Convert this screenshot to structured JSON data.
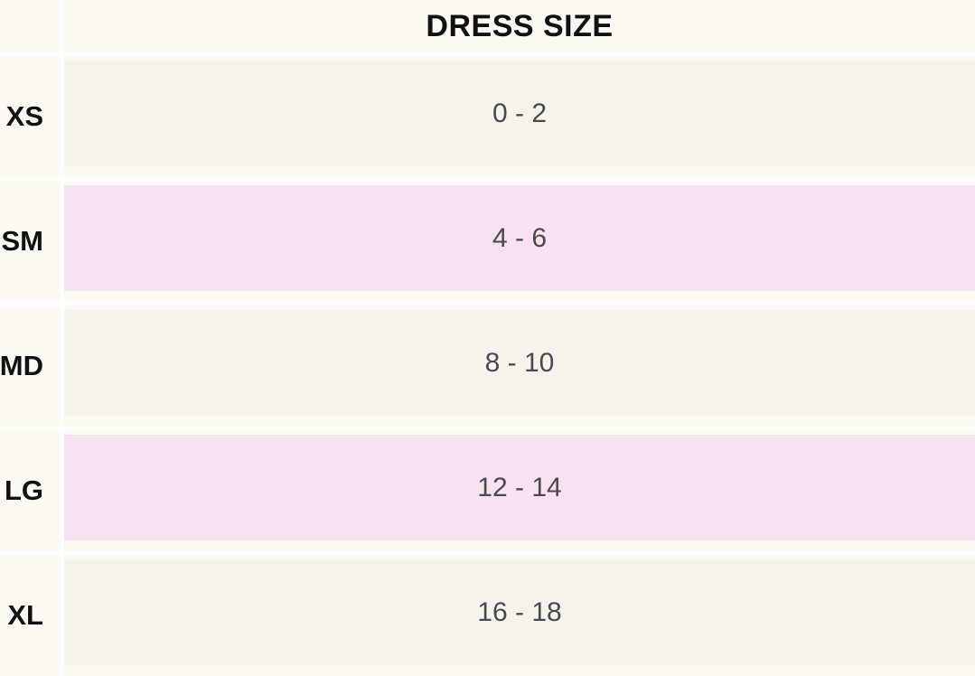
{
  "table": {
    "header": "DRESS SIZE",
    "rows": [
      {
        "size": "XS",
        "dress": "0 - 2",
        "shade": "plain"
      },
      {
        "size": "SM",
        "dress": "4 - 6",
        "shade": "pink"
      },
      {
        "size": "MD",
        "dress": "8 - 10",
        "shade": "plain"
      },
      {
        "size": "LG",
        "dress": "12 - 14",
        "shade": "pink"
      },
      {
        "size": "XL",
        "dress": "16 - 18",
        "shade": "plain"
      }
    ]
  },
  "colors": {
    "background": "#fdfaf3",
    "row_plain": "#f6f3ec",
    "row_pink": "#f7e1f3"
  }
}
